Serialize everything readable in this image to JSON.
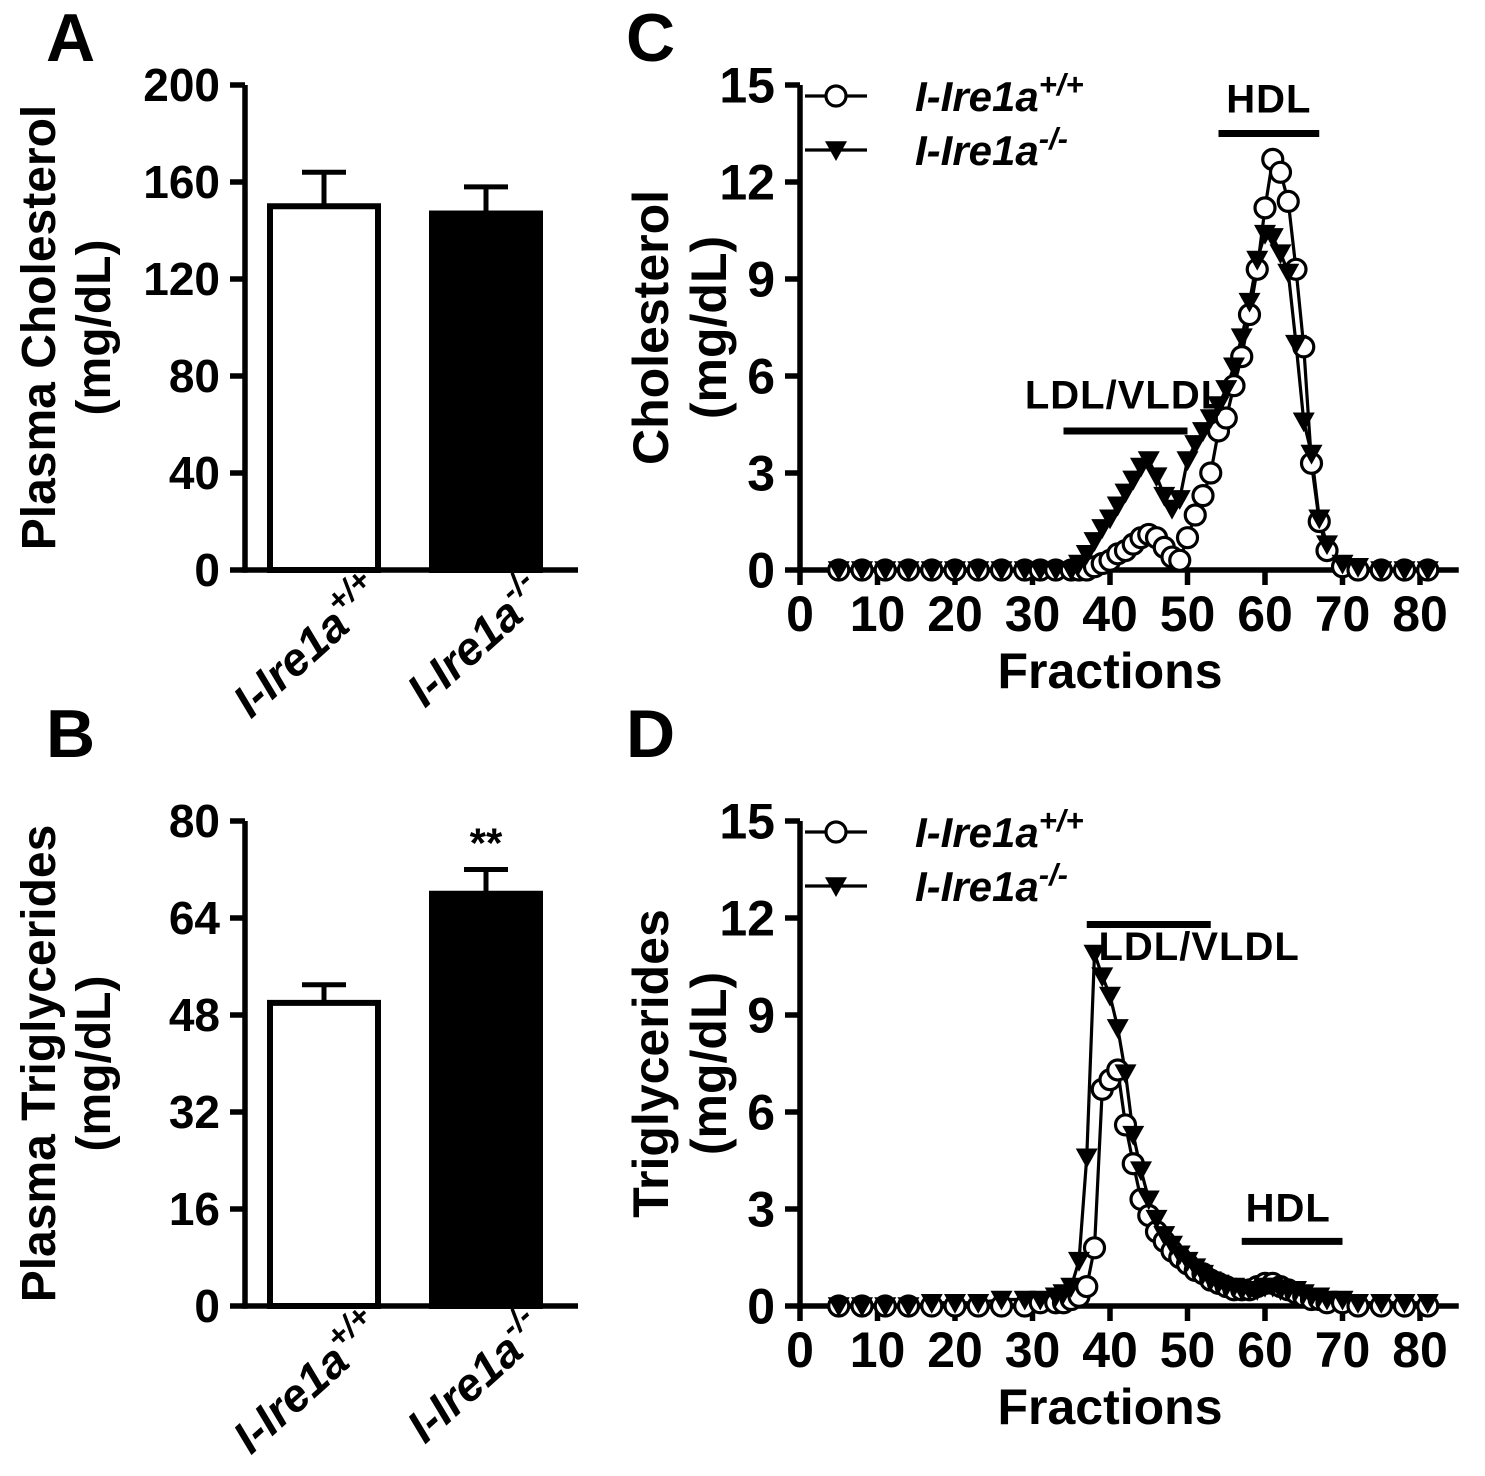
{
  "figure": {
    "background": "#ffffff",
    "foreground": "#000000",
    "panels": [
      {
        "letter": "A"
      },
      {
        "letter": "B"
      },
      {
        "letter": "C"
      },
      {
        "letter": "D"
      }
    ]
  },
  "chart_data": [
    {
      "id": "A",
      "type": "bar",
      "title": "",
      "ylabel_lines": [
        "Plasma Cholesterol",
        "(mg/dL)"
      ],
      "ylim": [
        0,
        200
      ],
      "yticks": [
        0,
        40,
        80,
        120,
        160,
        200
      ],
      "categories": [
        {
          "base": "I-Ire1a",
          "sup": "+/+"
        },
        {
          "base": "I-Ire1a",
          "sup": "-/-"
        }
      ],
      "values": [
        150,
        147
      ],
      "errors": [
        14,
        11
      ],
      "bar_fills": [
        "#ffffff",
        "#000000"
      ],
      "significance": [
        "",
        ""
      ]
    },
    {
      "id": "B",
      "type": "bar",
      "title": "",
      "ylabel_lines": [
        "Plasma Triglycerides",
        "(mg/dL)"
      ],
      "ylim": [
        0,
        80
      ],
      "yticks": [
        0,
        16,
        32,
        48,
        64,
        80
      ],
      "categories": [
        {
          "base": "I-Ire1a",
          "sup": "+/+"
        },
        {
          "base": "I-Ire1a",
          "sup": "-/-"
        }
      ],
      "values": [
        50,
        68
      ],
      "errors": [
        3,
        4
      ],
      "bar_fills": [
        "#ffffff",
        "#000000"
      ],
      "significance": [
        "",
        "**"
      ]
    },
    {
      "id": "C",
      "type": "line",
      "title": "",
      "xlabel": "Fractions",
      "ylabel_lines": [
        "Cholesterol",
        "(mg/dL)"
      ],
      "xlim": [
        0,
        85
      ],
      "ylim": [
        0,
        15
      ],
      "xticks": [
        0,
        10,
        20,
        30,
        40,
        50,
        60,
        70,
        80
      ],
      "yticks": [
        0,
        3,
        6,
        9,
        12,
        15
      ],
      "grid": false,
      "legend_position": "top-left",
      "series": [
        {
          "name": "I-Ire1a+/+",
          "label": {
            "base": "I-Ire1a",
            "sup": "+/+"
          },
          "marker": "circle-open",
          "x": [
            5,
            8,
            11,
            14,
            17,
            20,
            23,
            26,
            29,
            31,
            33,
            35,
            36,
            37,
            38,
            39,
            40,
            41,
            42,
            43,
            44,
            45,
            46,
            47,
            48,
            49,
            50,
            51,
            52,
            53,
            54,
            55,
            56,
            57,
            58,
            59,
            60,
            61,
            62,
            63,
            64,
            65,
            66,
            67,
            68,
            70,
            72,
            75,
            78,
            81
          ],
          "y": [
            0,
            0,
            0,
            0,
            0,
            0,
            0,
            0,
            0,
            0,
            0,
            0,
            0,
            0,
            0.1,
            0.2,
            0.3,
            0.5,
            0.6,
            0.8,
            1.0,
            1.1,
            1.0,
            0.7,
            0.4,
            0.3,
            1.0,
            1.7,
            2.3,
            3.0,
            4.3,
            4.7,
            5.7,
            6.6,
            7.9,
            9.3,
            11.2,
            12.7,
            12.3,
            11.4,
            9.3,
            6.9,
            3.3,
            1.5,
            0.6,
            0.1,
            0,
            0,
            0,
            0
          ]
        },
        {
          "name": "I-Ire1a-/-",
          "label": {
            "base": "I-Ire1a",
            "sup": "-/-"
          },
          "marker": "triangle-filled",
          "x": [
            5,
            8,
            11,
            14,
            17,
            20,
            23,
            26,
            29,
            31,
            33,
            35,
            36,
            37,
            38,
            39,
            40,
            41,
            42,
            43,
            44,
            45,
            46,
            47,
            48,
            49,
            50,
            51,
            52,
            53,
            54,
            55,
            56,
            57,
            58,
            59,
            60,
            61,
            62,
            63,
            64,
            65,
            66,
            67,
            68,
            70,
            72,
            75,
            78,
            81
          ],
          "y": [
            0,
            0,
            0,
            0,
            0,
            0,
            0,
            0,
            0,
            0,
            0,
            0,
            0.2,
            0.5,
            0.9,
            1.3,
            1.6,
            2.0,
            2.4,
            2.8,
            3.2,
            3.4,
            2.9,
            2.3,
            1.9,
            2.2,
            3.4,
            3.9,
            4.3,
            4.7,
            5.1,
            5.6,
            6.3,
            7.2,
            8.3,
            9.6,
            10.4,
            10.3,
            9.8,
            9.2,
            7.0,
            4.6,
            3.6,
            1.6,
            0.8,
            0.2,
            0.1,
            0,
            0,
            0
          ]
        }
      ],
      "annotations": [
        {
          "text": "LDL/VLDL",
          "bar_x": [
            34,
            50
          ],
          "bar_y": 4.3,
          "text_x": 42,
          "text_y": 5.0
        },
        {
          "text": "HDL",
          "bar_x": [
            54,
            67
          ],
          "bar_y": 13.5,
          "text_x": 60.5,
          "text_y": 14.15
        }
      ]
    },
    {
      "id": "D",
      "type": "line",
      "title": "",
      "xlabel": "Fractions",
      "ylabel_lines": [
        "Triglycerides",
        "(mg/dL)"
      ],
      "xlim": [
        0,
        85
      ],
      "ylim": [
        0,
        15
      ],
      "xticks": [
        0,
        10,
        20,
        30,
        40,
        50,
        60,
        70,
        80
      ],
      "yticks": [
        0,
        3,
        6,
        9,
        12,
        15
      ],
      "grid": false,
      "legend_position": "top-left",
      "series": [
        {
          "name": "I-Ire1a+/+",
          "label": {
            "base": "I-Ire1a",
            "sup": "+/+"
          },
          "marker": "circle-open",
          "x": [
            5,
            8,
            11,
            14,
            17,
            20,
            23,
            26,
            29,
            31,
            33,
            34,
            35,
            36,
            37,
            38,
            39,
            40,
            41,
            42,
            43,
            44,
            45,
            46,
            47,
            48,
            49,
            50,
            51,
            52,
            53,
            54,
            55,
            56,
            57,
            58,
            59,
            60,
            61,
            62,
            63,
            64,
            65,
            66,
            67,
            68,
            70,
            72,
            75,
            78,
            81
          ],
          "y": [
            0,
            0,
            0,
            0,
            0,
            0,
            0,
            0,
            0,
            0.1,
            0.1,
            0.1,
            0.2,
            0.3,
            0.6,
            1.8,
            6.7,
            7.0,
            7.3,
            5.6,
            4.4,
            3.3,
            2.8,
            2.3,
            2.0,
            1.7,
            1.5,
            1.3,
            1.1,
            1.0,
            0.8,
            0.7,
            0.6,
            0.5,
            0.5,
            0.5,
            0.6,
            0.7,
            0.7,
            0.6,
            0.5,
            0.4,
            0.3,
            0.2,
            0.2,
            0.1,
            0.1,
            0,
            0,
            0,
            0
          ]
        },
        {
          "name": "I-Ire1a-/-",
          "label": {
            "base": "I-Ire1a",
            "sup": "-/-"
          },
          "marker": "triangle-filled",
          "x": [
            5,
            8,
            11,
            14,
            17,
            20,
            23,
            26,
            29,
            31,
            33,
            34,
            35,
            36,
            37,
            38,
            39,
            40,
            41,
            42,
            43,
            44,
            45,
            46,
            47,
            48,
            49,
            50,
            51,
            52,
            53,
            54,
            55,
            56,
            57,
            58,
            59,
            60,
            61,
            62,
            63,
            64,
            65,
            66,
            67,
            68,
            70,
            72,
            75,
            78,
            81
          ],
          "y": [
            0,
            0,
            0,
            0,
            0.1,
            0.1,
            0.1,
            0.2,
            0.2,
            0.2,
            0.3,
            0.4,
            0.6,
            1.4,
            4.6,
            10.9,
            10.2,
            9.6,
            8.6,
            7.2,
            5.3,
            4.2,
            3.3,
            2.7,
            2.2,
            1.9,
            1.6,
            1.4,
            1.2,
            1.0,
            0.8,
            0.7,
            0.6,
            0.6,
            0.5,
            0.5,
            0.5,
            0.6,
            0.6,
            0.5,
            0.5,
            0.5,
            0.4,
            0.3,
            0.3,
            0.2,
            0.2,
            0.1,
            0.1,
            0.1,
            0.1
          ]
        }
      ],
      "annotations": [
        {
          "text": "LDL/VLDL",
          "bar_x": [
            37,
            53
          ],
          "bar_y": 11.8,
          "text_x": 51.5,
          "text_y": 10.7
        },
        {
          "text": "HDL",
          "bar_x": [
            57,
            70
          ],
          "bar_y": 2.0,
          "text_x": 63,
          "text_y": 2.62
        }
      ]
    }
  ]
}
